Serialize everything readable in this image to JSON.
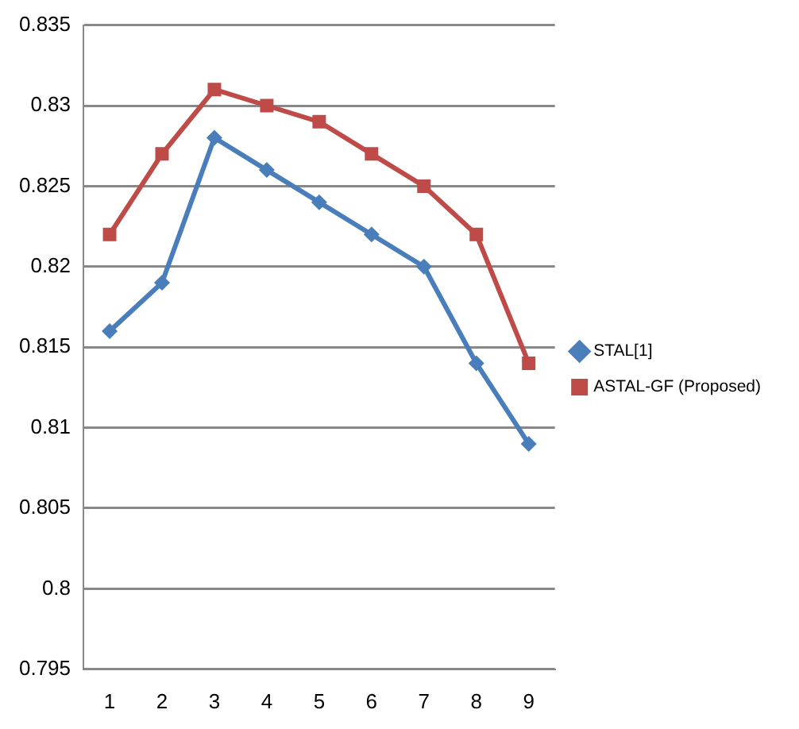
{
  "chart_data": {
    "type": "line",
    "categories": [
      "1",
      "2",
      "3",
      "4",
      "5",
      "6",
      "7",
      "8",
      "9"
    ],
    "series": [
      {
        "name": "STAL[1]",
        "color": "#4a7ebb",
        "marker": "diamond",
        "values": [
          0.816,
          0.819,
          0.828,
          0.826,
          0.824,
          0.822,
          0.82,
          0.814,
          0.809
        ]
      },
      {
        "name": "ASTAL-GF (Proposed)",
        "color": "#be4b48",
        "marker": "square",
        "values": [
          0.822,
          0.827,
          0.831,
          0.83,
          0.829,
          0.827,
          0.825,
          0.822,
          0.814
        ]
      }
    ],
    "ylim": [
      0.795,
      0.835
    ],
    "yticks": [
      0.795,
      0.8,
      0.805,
      0.81,
      0.815,
      0.82,
      0.825,
      0.83,
      0.835
    ],
    "grid": "y",
    "legend": "right"
  }
}
